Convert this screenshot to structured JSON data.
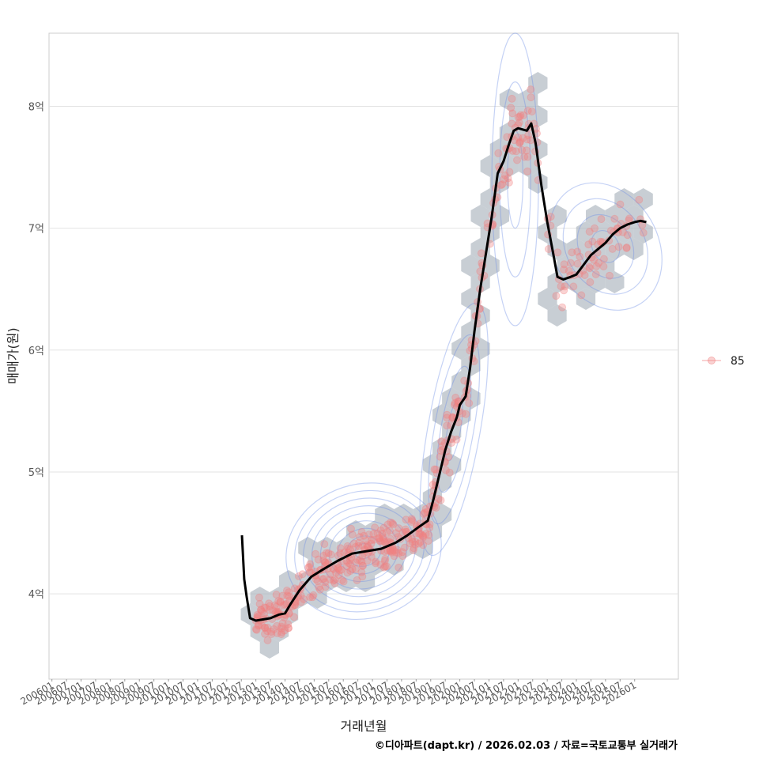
{
  "chart_data": {
    "type": "scatter",
    "ylabel": "매매가(원)",
    "xlabel": "거래년월",
    "caption": "©디아파트(dapt.kr) / 2026.02.03 / 자료=국토교통부 실거래가",
    "legend": {
      "position": "right",
      "entries": [
        {
          "label": "85",
          "color": "#f08080"
        }
      ]
    },
    "x_ticks": [
      "200601",
      "200607",
      "200701",
      "200707",
      "200801",
      "200807",
      "200901",
      "200907",
      "201001",
      "201007",
      "201101",
      "201107",
      "201201",
      "201207",
      "201301",
      "201307",
      "201401",
      "201407",
      "201501",
      "201507",
      "201601",
      "201607",
      "201701",
      "201707",
      "201801",
      "201807",
      "201901",
      "201907",
      "202001",
      "202007",
      "202101",
      "202107",
      "202201",
      "202207",
      "202301",
      "202307",
      "202401",
      "202407",
      "202501",
      "202507",
      "202601"
    ],
    "xlim": [
      2005.9,
      2027.5
    ],
    "ylim": [
      3.3,
      8.6
    ],
    "y_ticks": [
      {
        "value": 4,
        "label": "4억"
      },
      {
        "value": 5,
        "label": "5억"
      },
      {
        "value": 6,
        "label": "6억"
      },
      {
        "value": 7,
        "label": "7억"
      },
      {
        "value": 8,
        "label": "8억"
      }
    ],
    "series": [
      {
        "name": "moving-average",
        "color": "#000000",
        "points": [
          [
            2012.52,
            4.48
          ],
          [
            2012.6,
            4.12
          ],
          [
            2012.68,
            3.98
          ],
          [
            2012.8,
            3.8
          ],
          [
            2013.0,
            3.78
          ],
          [
            2013.5,
            3.8
          ],
          [
            2013.8,
            3.83
          ],
          [
            2014.0,
            3.84
          ],
          [
            2014.2,
            3.92
          ],
          [
            2014.5,
            4.03
          ],
          [
            2014.9,
            4.14
          ],
          [
            2015.3,
            4.2
          ],
          [
            2015.8,
            4.27
          ],
          [
            2016.3,
            4.33
          ],
          [
            2016.8,
            4.35
          ],
          [
            2017.3,
            4.37
          ],
          [
            2017.8,
            4.42
          ],
          [
            2018.2,
            4.48
          ],
          [
            2018.6,
            4.55
          ],
          [
            2018.9,
            4.6
          ],
          [
            2019.1,
            4.78
          ],
          [
            2019.3,
            4.98
          ],
          [
            2019.5,
            5.18
          ],
          [
            2019.7,
            5.33
          ],
          [
            2019.9,
            5.45
          ],
          [
            2020.0,
            5.55
          ],
          [
            2020.2,
            5.62
          ],
          [
            2020.35,
            5.85
          ],
          [
            2020.5,
            6.15
          ],
          [
            2020.7,
            6.5
          ],
          [
            2020.9,
            6.8
          ],
          [
            2021.1,
            7.1
          ],
          [
            2021.3,
            7.45
          ],
          [
            2021.5,
            7.55
          ],
          [
            2021.7,
            7.7
          ],
          [
            2021.85,
            7.8
          ],
          [
            2022.0,
            7.82
          ],
          [
            2022.3,
            7.8
          ],
          [
            2022.45,
            7.86
          ],
          [
            2022.6,
            7.7
          ],
          [
            2022.8,
            7.35
          ],
          [
            2023.0,
            7.05
          ],
          [
            2023.2,
            6.8
          ],
          [
            2023.35,
            6.6
          ],
          [
            2023.55,
            6.58
          ],
          [
            2023.8,
            6.6
          ],
          [
            2024.0,
            6.62
          ],
          [
            2024.25,
            6.7
          ],
          [
            2024.5,
            6.78
          ],
          [
            2024.75,
            6.83
          ],
          [
            2025.0,
            6.88
          ],
          [
            2025.25,
            6.95
          ],
          [
            2025.5,
            7.0
          ],
          [
            2025.75,
            7.03
          ],
          [
            2026.0,
            7.05
          ],
          [
            2026.2,
            7.06
          ],
          [
            2026.4,
            7.05
          ]
        ]
      }
    ]
  }
}
